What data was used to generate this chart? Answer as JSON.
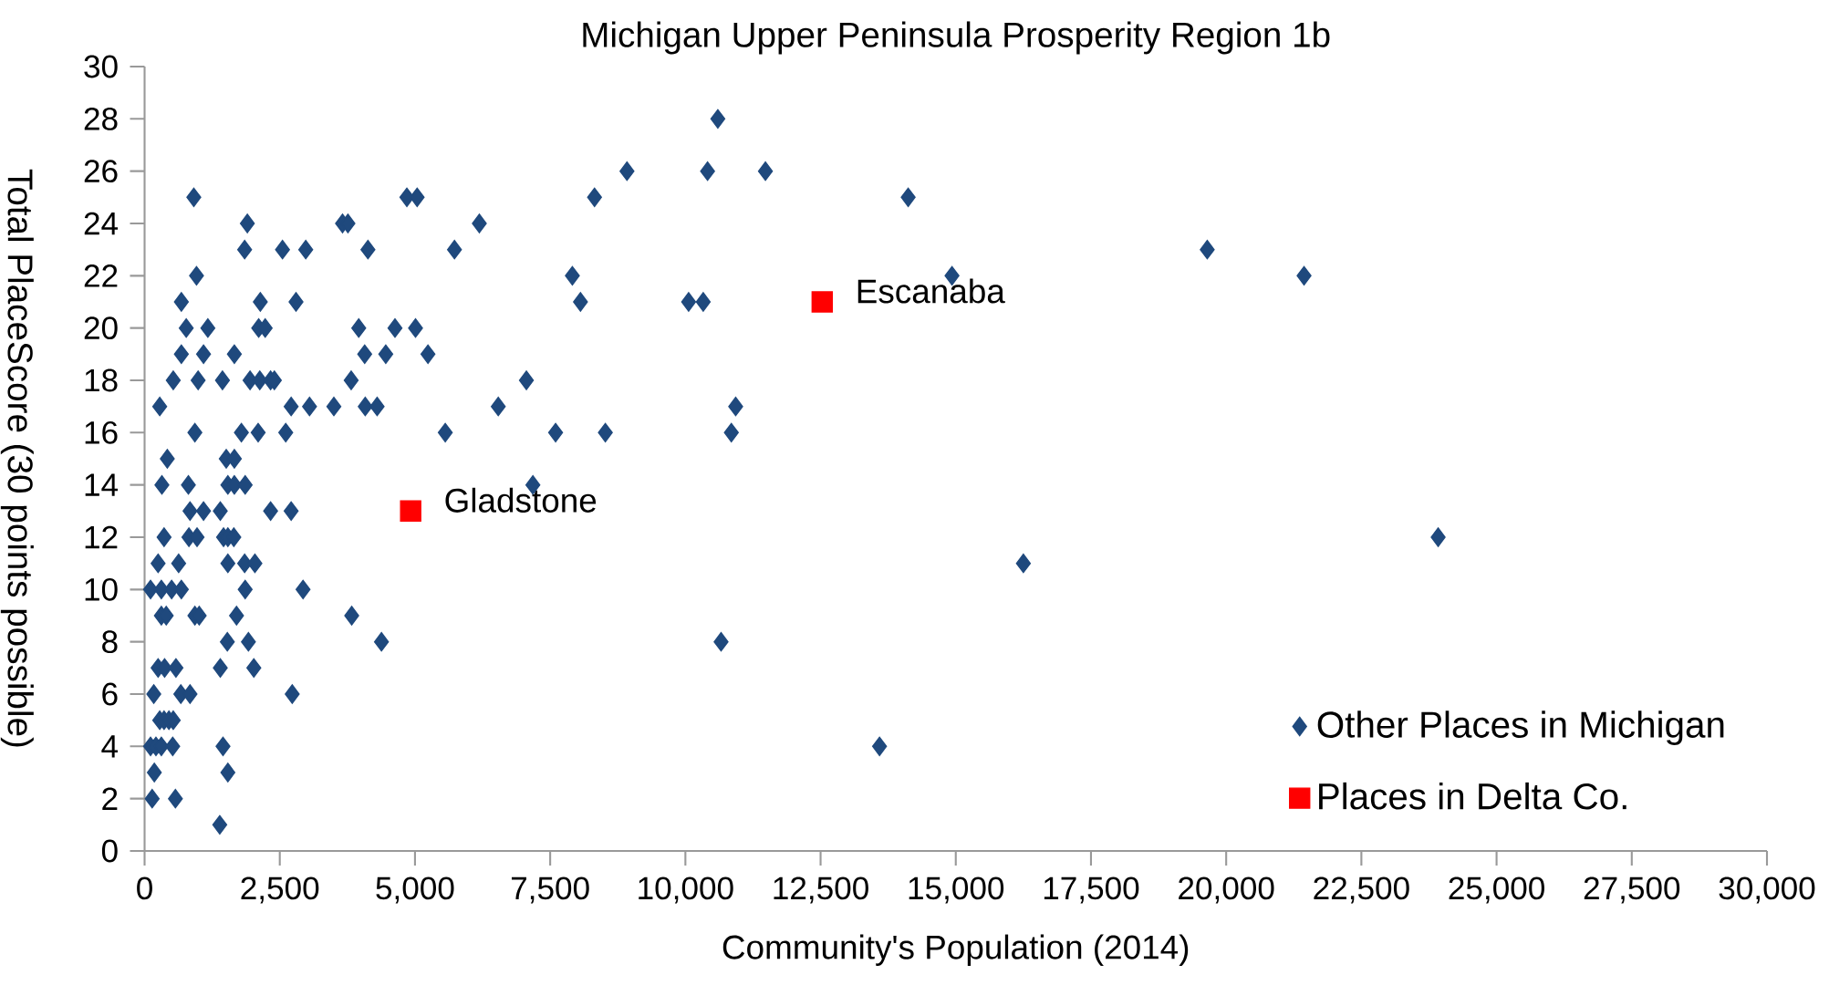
{
  "chart_data": {
    "type": "scatter",
    "title": "Michigan Upper Peninsula Prosperity Region 1b",
    "xlabel": "Community's Population (2014)",
    "ylabel": "Total PlaceScore (30 points possible)",
    "xlim": [
      0,
      30000
    ],
    "ylim": [
      0,
      30
    ],
    "xticks": [
      0,
      {
        "value": 2500,
        "label": "2,500"
      },
      {
        "value": 5000,
        "label": "5,000"
      },
      {
        "value": 7500,
        "label": "7,500"
      },
      {
        "value": 10000,
        "label": "10,000"
      },
      {
        "value": 12500,
        "label": "12,500"
      },
      {
        "value": 15000,
        "label": "15,000"
      },
      {
        "value": 17500,
        "label": "17,500"
      },
      {
        "value": 20000,
        "label": "20,000"
      },
      {
        "value": 22500,
        "label": "22,500"
      },
      {
        "value": 25000,
        "label": "25,000"
      },
      {
        "value": 27500,
        "label": "27,500"
      },
      {
        "value": 30000,
        "label": "30,000"
      }
    ],
    "yticks": [
      0,
      2,
      4,
      6,
      8,
      10,
      12,
      14,
      16,
      18,
      20,
      22,
      24,
      26,
      28,
      30
    ],
    "grid": false,
    "legend": "bottom right",
    "series": [
      {
        "name": "Other Places in Michigan",
        "color": "#1f497d",
        "marker": "diamond",
        "x": [
          10600,
          8920,
          10410,
          11480,
          910,
          4850,
          5040,
          8320,
          14120,
          1900,
          3660,
          3760,
          6190,
          1850,
          2550,
          2980,
          4130,
          5730,
          19650,
          960,
          7910,
          14930,
          21440,
          680,
          2140,
          2800,
          8060,
          10060,
          10330,
          770,
          1170,
          2110,
          2230,
          3960,
          4630,
          5010,
          680,
          1090,
          1660,
          4070,
          4460,
          5240,
          530,
          990,
          1440,
          1950,
          2130,
          2330,
          2400,
          3820,
          7060,
          280,
          2710,
          3050,
          3500,
          4080,
          4300,
          6540,
          10930,
          930,
          1790,
          2100,
          2610,
          5560,
          7600,
          8520,
          10850,
          420,
          1510,
          1660,
          320,
          810,
          1540,
          1660,
          1860,
          7180,
          840,
          1090,
          1400,
          2330,
          2710,
          360,
          820,
          970,
          1460,
          1540,
          1650,
          23920,
          250,
          630,
          1540,
          1850,
          2040,
          16250,
          110,
          310,
          500,
          680,
          1860,
          2930,
          310,
          400,
          930,
          1010,
          1700,
          3830,
          1530,
          1920,
          4380,
          10660,
          250,
          370,
          580,
          1400,
          2020,
          170,
          670,
          840,
          2730,
          280,
          360,
          450,
          530,
          110,
          210,
          310,
          520,
          1450,
          13590,
          180,
          1540,
          140,
          570,
          1390
        ],
        "values": [
          28,
          26,
          26,
          26,
          25,
          25,
          25,
          25,
          25,
          24,
          24,
          24,
          24,
          23,
          23,
          23,
          23,
          23,
          23,
          22,
          22,
          22,
          22,
          21,
          21,
          21,
          21,
          21,
          21,
          20,
          20,
          20,
          20,
          20,
          20,
          20,
          19,
          19,
          19,
          19,
          19,
          19,
          18,
          18,
          18,
          18,
          18,
          18,
          18,
          18,
          18,
          17,
          17,
          17,
          17,
          17,
          17,
          17,
          17,
          16,
          16,
          16,
          16,
          16,
          16,
          16,
          16,
          15,
          15,
          15,
          14,
          14,
          14,
          14,
          14,
          14,
          13,
          13,
          13,
          13,
          13,
          12,
          12,
          12,
          12,
          12,
          12,
          12,
          11,
          11,
          11,
          11,
          11,
          11,
          10,
          10,
          10,
          10,
          10,
          10,
          9,
          9,
          9,
          9,
          9,
          9,
          8,
          8,
          8,
          8,
          7,
          7,
          7,
          7,
          7,
          6,
          6,
          6,
          6,
          5,
          5,
          5,
          5,
          4,
          4,
          4,
          4,
          4,
          4,
          3,
          3,
          2,
          2,
          1
        ]
      },
      {
        "name": "Places in Delta Co.",
        "color": "#ff0000",
        "marker": "square",
        "x": [
          12530,
          4920
        ],
        "values": [
          21,
          13
        ]
      }
    ],
    "annotations": [
      {
        "text": "Escanaba",
        "x": 12530,
        "y": 21
      },
      {
        "text": "Gladstone",
        "x": 4920,
        "y": 13
      }
    ]
  }
}
